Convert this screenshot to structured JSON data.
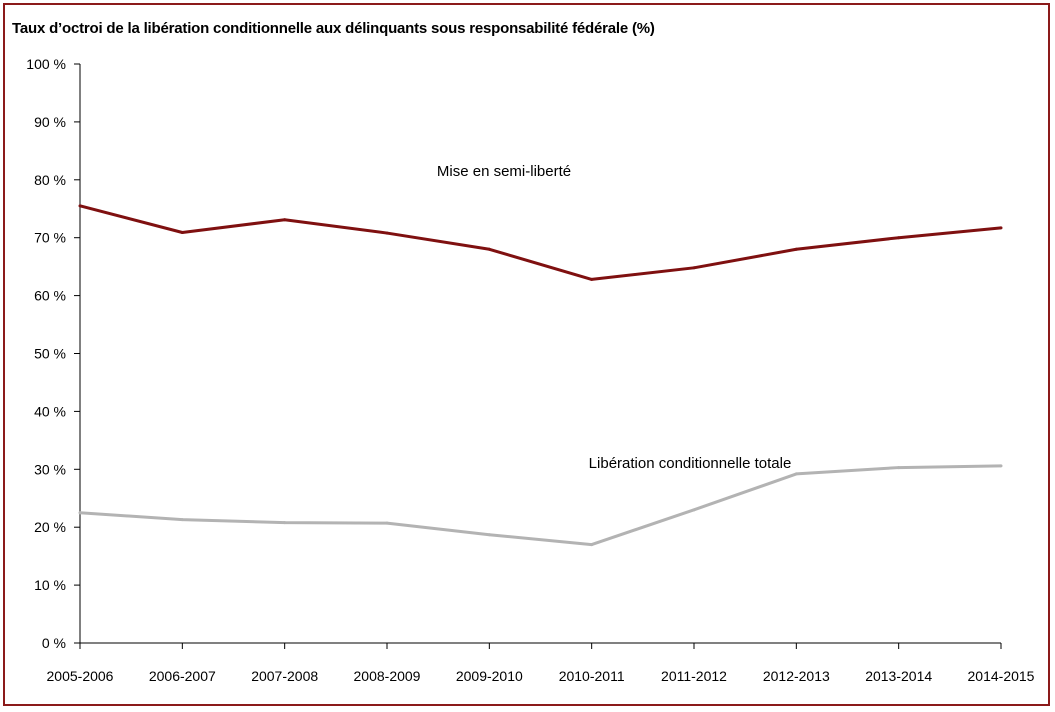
{
  "chart_data": {
    "type": "line",
    "title": "Taux d’octroi de la libération conditionnelle aux délinquants sous responsabilité fédérale (%)",
    "categories": [
      "2005-2006",
      "2006-2007",
      "2007-2008",
      "2008-2009",
      "2009-2010",
      "2010-2011",
      "2011-2012",
      "2012-2013",
      "2013-2014",
      "2014-2015"
    ],
    "yticks": [
      "0 %",
      "10 %",
      "20 %",
      "30 %",
      "40 %",
      "50 %",
      "60 %",
      "70 %",
      "80 %",
      "90 %",
      "100 %"
    ],
    "ylim": [
      0,
      100
    ],
    "grid": false,
    "series": [
      {
        "name": "Mise en semi-liberté",
        "color": "#7f1010",
        "values": [
          75.5,
          70.9,
          73.1,
          70.8,
          68.0,
          62.8,
          64.8,
          68.0,
          70.0,
          71.7
        ]
      },
      {
        "name": "Libération conditionnelle totale",
        "color": "#b3b3b3",
        "values": [
          22.5,
          21.3,
          20.8,
          20.7,
          18.7,
          17.0,
          23.0,
          29.2,
          30.3,
          30.6
        ]
      }
    ]
  }
}
